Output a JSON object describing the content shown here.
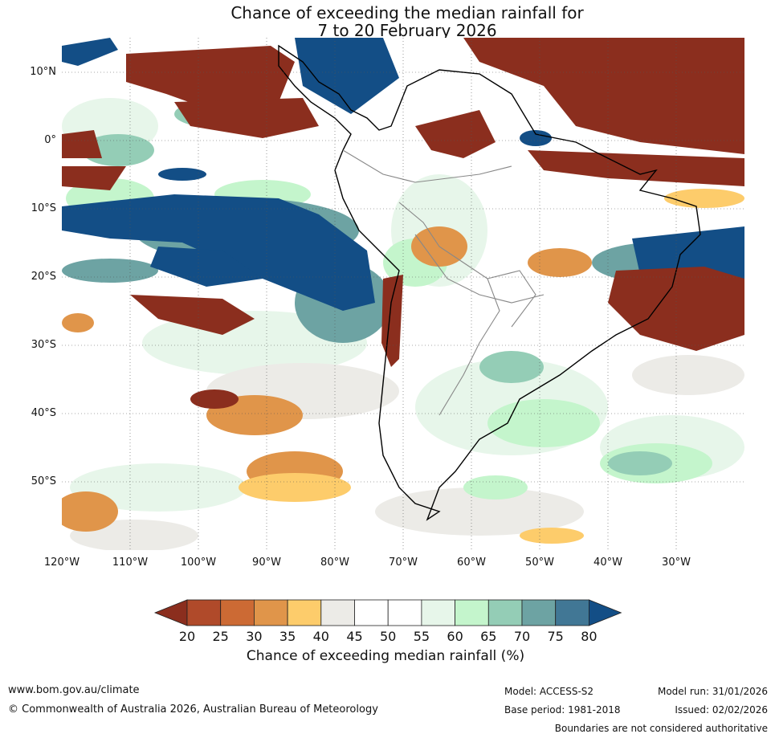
{
  "title": {
    "line1": "Chance of exceeding the median rainfall for",
    "line2": "7 to 20 February 2026"
  },
  "map": {
    "lat_labels": [
      "10°N",
      "0°",
      "10°S",
      "20°S",
      "30°S",
      "40°S",
      "50°S"
    ],
    "lon_labels": [
      "120°W",
      "110°W",
      "100°W",
      "90°W",
      "80°W",
      "70°W",
      "60°W",
      "50°W",
      "40°W",
      "30°W"
    ],
    "extent": {
      "lon_min": -120,
      "lon_max": -20,
      "lat_min": -60,
      "lat_max": 15
    },
    "gridlines": true
  },
  "colorbar": {
    "ticks": [
      "20",
      "25",
      "30",
      "35",
      "40",
      "45",
      "50",
      "55",
      "60",
      "65",
      "70",
      "75",
      "80"
    ],
    "colors": [
      "#8b2e1e",
      "#b04a2a",
      "#cc6a34",
      "#e0954a",
      "#fdcc6b",
      "#ecebe7",
      "#ffffff",
      "#ffffff",
      "#e7f6ea",
      "#c4f5cc",
      "#94cdb6",
      "#6da3a3",
      "#417795",
      "#134e86"
    ],
    "label": "Chance of exceeding median rainfall (%)"
  },
  "footer": {
    "url": "www.bom.gov.au/climate",
    "copyright": "© Commonwealth of Australia 2026, Australian Bureau of Meteorology",
    "model": "Model: ACCESS-S2",
    "base_period": "Base period: 1981-2018",
    "model_run": "Model run: 31/01/2026",
    "issued": "Issued: 02/02/2026",
    "boundaries_note": "Boundaries are not considered authoritative"
  }
}
